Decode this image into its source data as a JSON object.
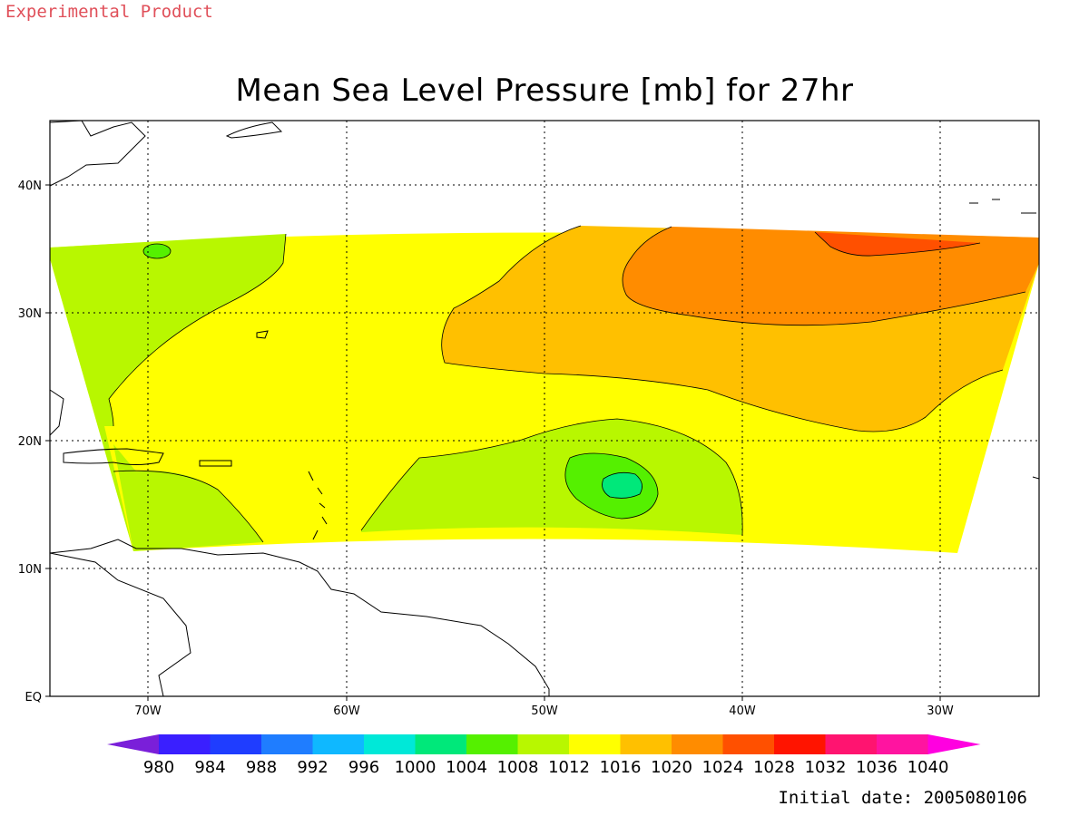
{
  "header": {
    "product_label": "Experimental Product",
    "title": "Mean Sea Level Pressure [mb] for 27hr"
  },
  "footer": {
    "initial_date": "Initial date: 2005080106"
  },
  "map": {
    "variable": "Mean Sea Level Pressure",
    "units": "mb",
    "forecast_hour": "27hr",
    "lon_range": [
      "75W",
      "25W"
    ],
    "lat_range": [
      "EQ",
      "45N"
    ],
    "lon_ticks": [
      "70W",
      "60W",
      "50W",
      "40W",
      "30W"
    ],
    "lat_ticks": [
      "EQ",
      "10N",
      "20N",
      "30N",
      "40N"
    ],
    "grid": "dotted"
  },
  "colorbar": {
    "levels": [
      "980",
      "984",
      "988",
      "992",
      "996",
      "1000",
      "1004",
      "1008",
      "1012",
      "1016",
      "1020",
      "1024",
      "1028",
      "1032",
      "1036",
      "1040"
    ],
    "colors": [
      "#7a1fd9",
      "#3a1fff",
      "#1f3dff",
      "#1f7dff",
      "#0fb8ff",
      "#00e8d8",
      "#00e87a",
      "#55f000",
      "#b8f700",
      "#ffff00",
      "#ffc000",
      "#ff8c00",
      "#ff5000",
      "#ff1400",
      "#ff1470",
      "#ff14a0",
      "#ff00e0"
    ]
  },
  "fields": {
    "color_1008": "#b8f700",
    "color_1012": "#ffff00",
    "color_1016": "#ffc000",
    "color_1020": "#ff8c00",
    "color_1024": "#ff5000",
    "color_1004": "#55f000",
    "color_1000": "#00e87a"
  }
}
